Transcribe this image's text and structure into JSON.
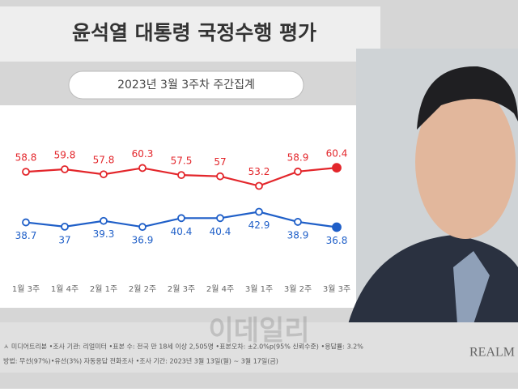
{
  "chart_data": {
    "type": "line",
    "title": "윤석열 대통령 국정수행 평가",
    "subtitle": "2023년 3월 3주차 주간집계",
    "categories": [
      "1월 3주",
      "1월 4주",
      "2월 1주",
      "2월 2주",
      "2월 3주",
      "2월 4주",
      "3월 1주",
      "3월 2주",
      "3월 3주"
    ],
    "series": [
      {
        "color": "#e3262b",
        "values": [
          58.8,
          59.8,
          57.8,
          60.3,
          57.5,
          57.0,
          53.2,
          58.9,
          60.4
        ]
      },
      {
        "color": "#1f5fc8",
        "values": [
          38.7,
          37.0,
          39.3,
          36.9,
          40.4,
          40.4,
          42.9,
          38.9,
          36.8
        ]
      }
    ],
    "ylim": [
      8,
      82
    ],
    "notes": [
      "ㅅ 미디어트리뷴 •조사 기관: 리얼미터 •표본 수: 전국 만 18세 이상 2,505명 •표본오차: ±2.0%p(95% 신뢰수준) •응답률: 3.2%",
      "방법: 무선(97%)•유선(3%) 자동응답 전화조사 •조사 기간: 2023년 3월 13일(월) ~ 3월 17일(금)"
    ],
    "brand": "REALM",
    "watermark": "이데일리"
  }
}
